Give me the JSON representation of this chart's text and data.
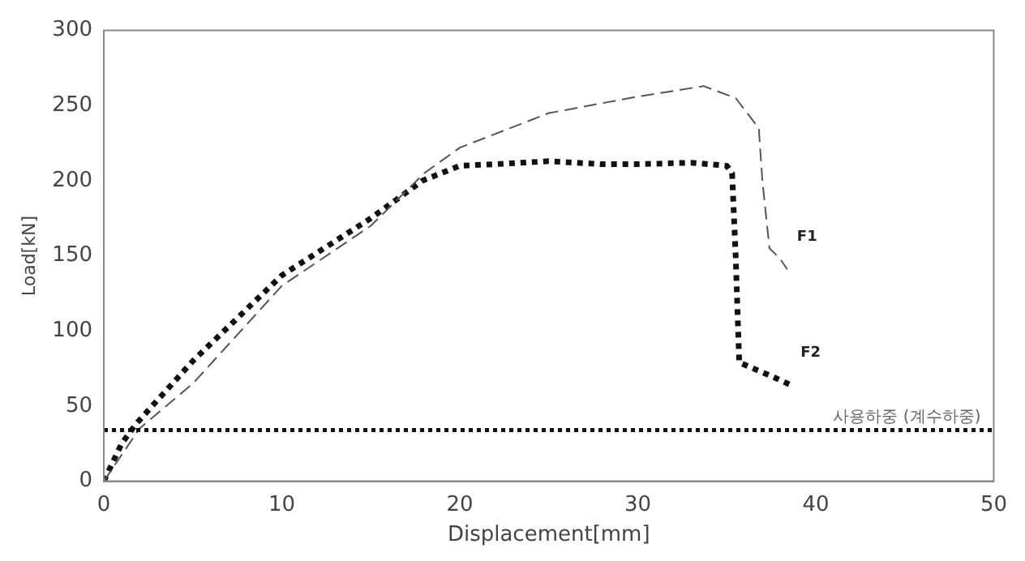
{
  "chart_data": {
    "type": "line",
    "xlabel": "Displacement[mm]",
    "ylabel": "Load[kN]",
    "xlim": [
      0,
      50
    ],
    "xticks": [
      0,
      10,
      20,
      30,
      40,
      50
    ],
    "ylim": [
      0,
      300
    ],
    "yticks": [
      0,
      50,
      100,
      150,
      200,
      250,
      300
    ],
    "grid": false,
    "legend": false,
    "marker": "none",
    "series": [
      {
        "name": "F1",
        "color": "#555555",
        "line_style": "dashed",
        "x": [
          0,
          2,
          5,
          10,
          15,
          18,
          20,
          25,
          30,
          33.7,
          35.5,
          36.8,
          37,
          37.4,
          38,
          38.4
        ],
        "values": [
          0,
          35,
          65,
          130,
          170,
          205,
          222,
          245,
          256,
          263,
          255,
          235,
          200,
          155,
          148,
          141
        ]
      },
      {
        "name": "F2",
        "color": "#111111",
        "line_style": "dotted",
        "x": [
          0,
          1,
          1.8,
          5,
          10,
          15,
          17.9,
          20,
          22,
          25,
          28,
          30,
          33,
          35,
          35.3,
          35.5,
          35.7,
          36.5,
          37.5,
          38.6
        ],
        "values": [
          0,
          25,
          38,
          80,
          137,
          175,
          200,
          210,
          211,
          213,
          211,
          211,
          212,
          210,
          205,
          150,
          79,
          75,
          70,
          64
        ]
      }
    ],
    "ref_lines": [
      {
        "axis": "y",
        "value": 34,
        "label": "사용하중 (계수하중)",
        "color": "#111111",
        "line_style": "dotted"
      }
    ]
  }
}
